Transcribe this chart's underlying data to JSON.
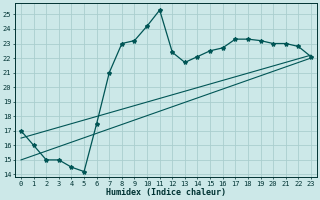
{
  "xlabel": "Humidex (Indice chaleur)",
  "bg_color": "#cce8e8",
  "grid_color": "#aacece",
  "line_color": "#005555",
  "xlim": [
    -0.5,
    23.5
  ],
  "ylim": [
    13.8,
    25.8
  ],
  "xticks": [
    0,
    1,
    2,
    3,
    4,
    5,
    6,
    7,
    8,
    9,
    10,
    11,
    12,
    13,
    14,
    15,
    16,
    17,
    18,
    19,
    20,
    21,
    22,
    23
  ],
  "yticks": [
    14,
    15,
    16,
    17,
    18,
    19,
    20,
    21,
    22,
    23,
    24,
    25
  ],
  "line1_x": [
    0,
    1,
    2,
    3,
    4,
    5,
    6,
    7,
    8,
    9,
    10,
    11,
    12,
    13,
    14,
    15,
    16,
    17,
    18,
    19,
    20,
    21,
    22,
    23
  ],
  "line1_y": [
    17,
    16,
    15,
    15,
    14.5,
    14.2,
    17.5,
    21.0,
    23.0,
    23.2,
    24.2,
    25.3,
    22.4,
    21.7,
    22.1,
    22.5,
    22.7,
    23.3,
    23.3,
    23.2,
    23.0,
    23.0,
    22.8,
    22.1
  ],
  "line2_x": [
    0,
    23
  ],
  "line2_y": [
    15.0,
    22.0
  ],
  "line3_x": [
    0,
    23
  ],
  "line3_y": [
    16.5,
    22.2
  ]
}
